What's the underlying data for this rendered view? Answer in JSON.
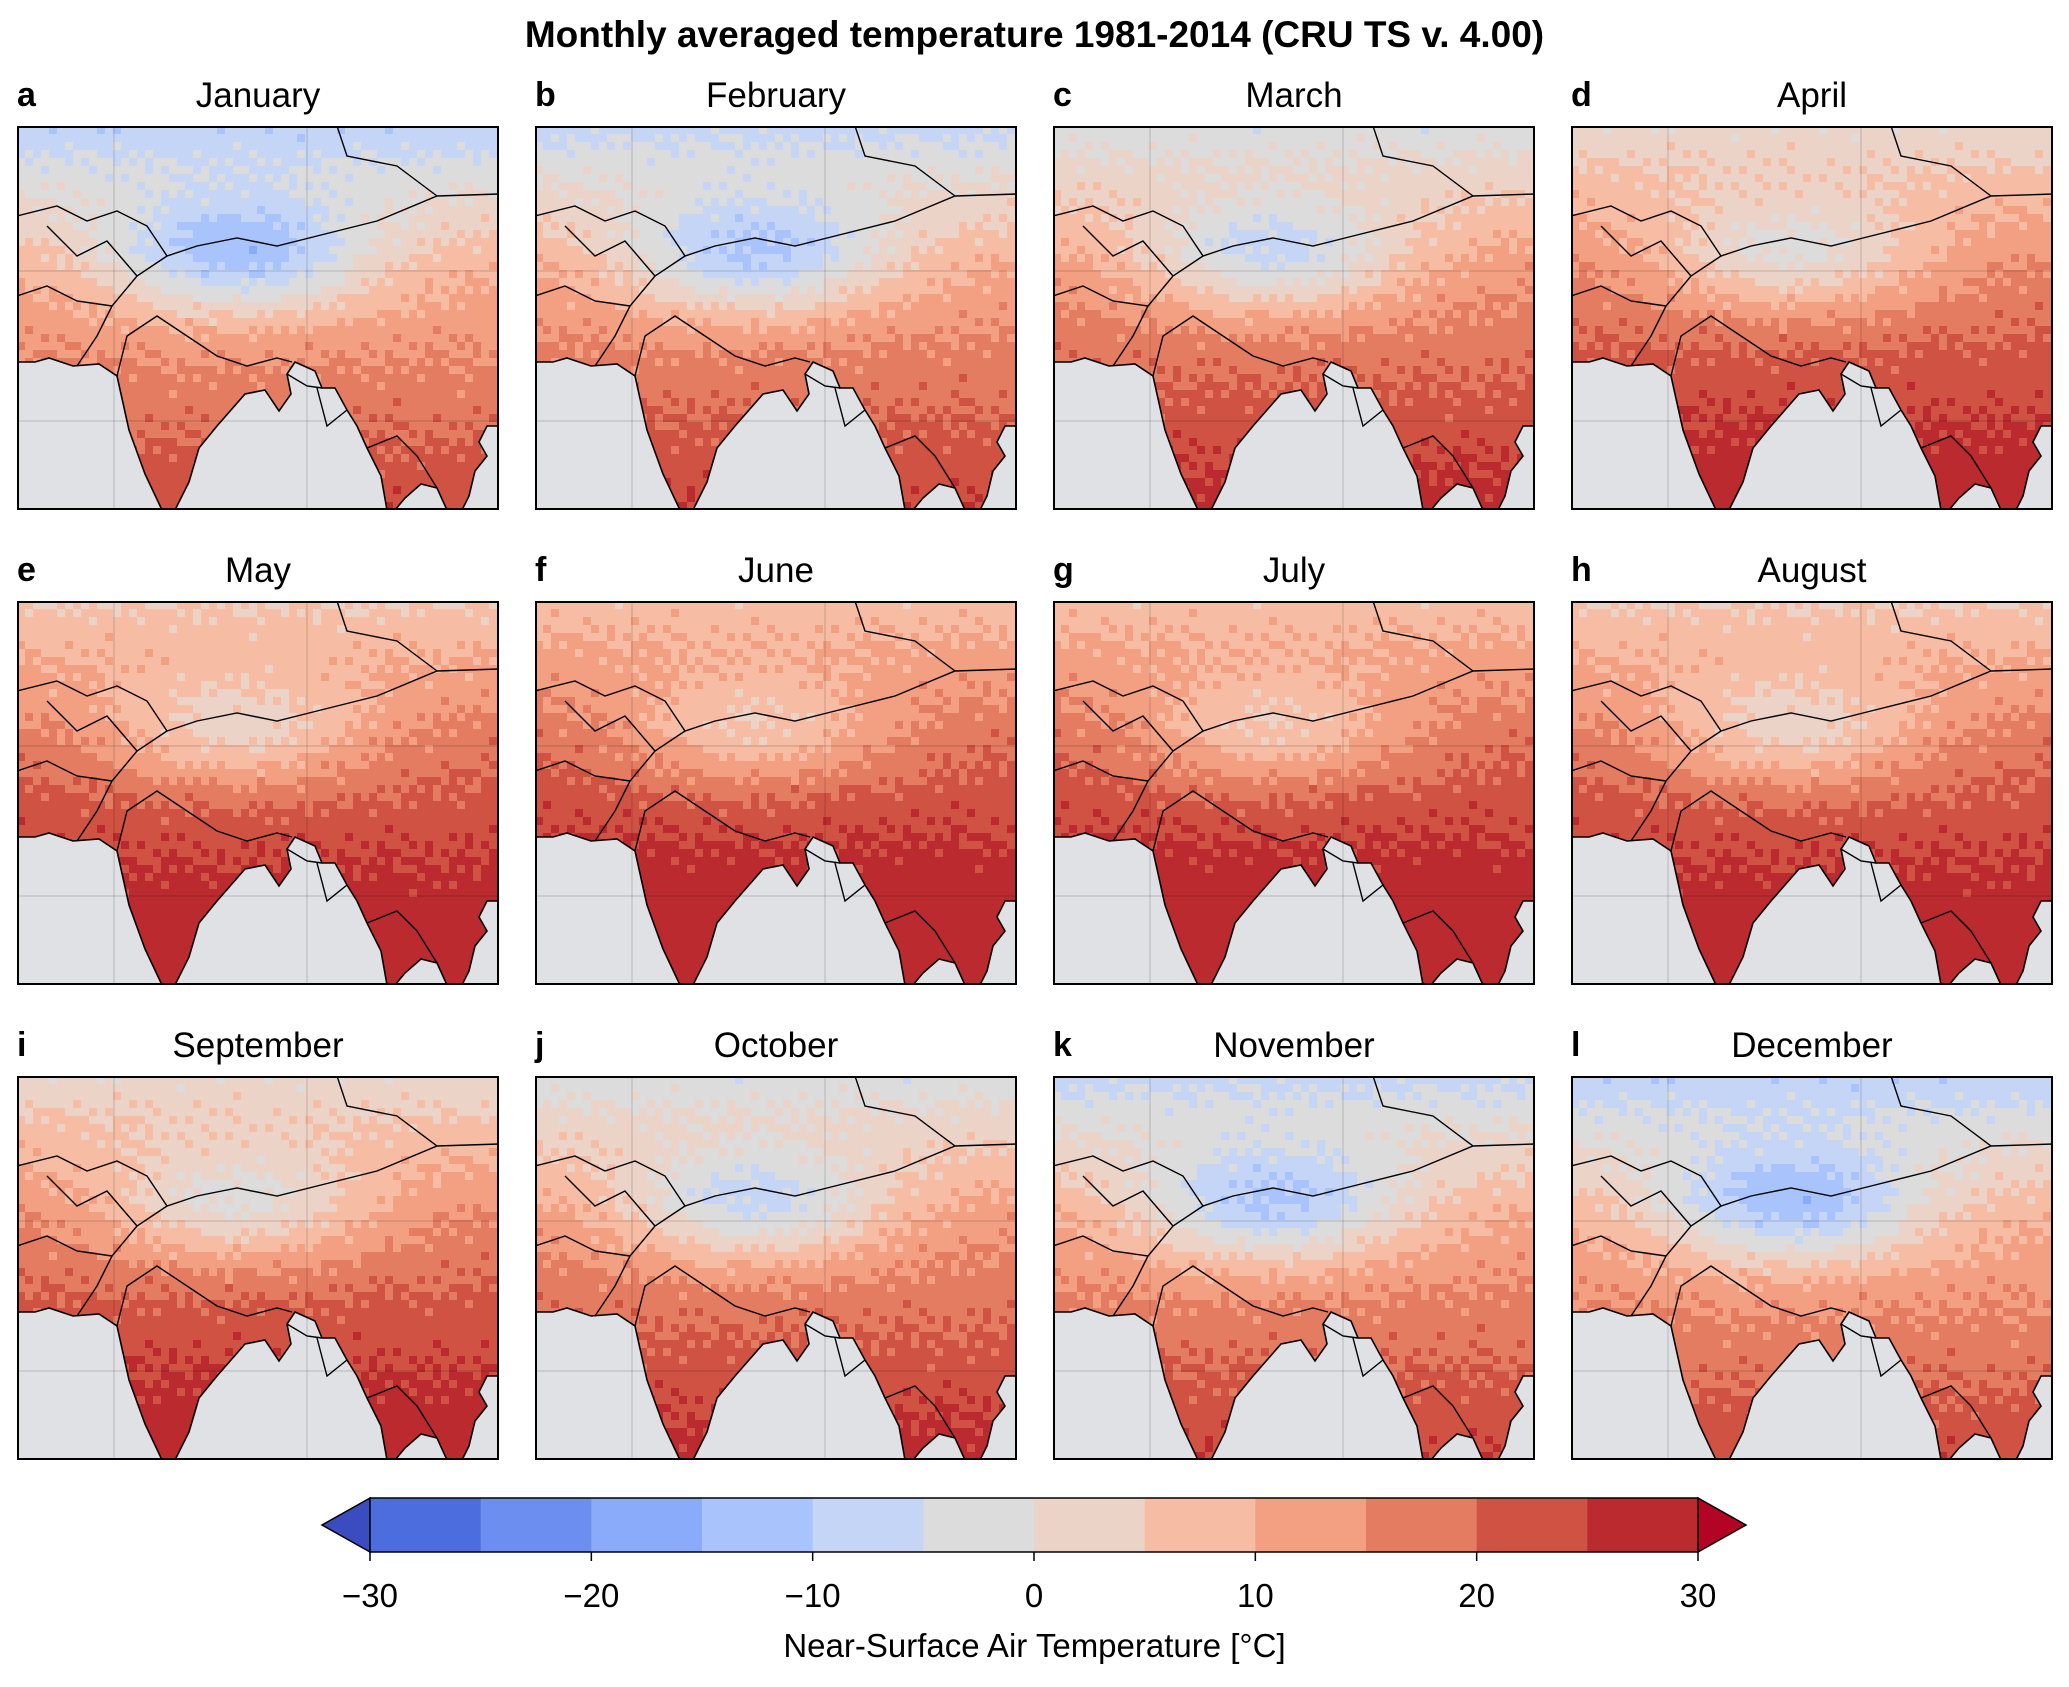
{
  "title": "Monthly averaged temperature 1981-2014 (CRU TS v. 4.00)",
  "panels": [
    {
      "letter": "a",
      "month": "January"
    },
    {
      "letter": "b",
      "month": "February"
    },
    {
      "letter": "c",
      "month": "March"
    },
    {
      "letter": "d",
      "month": "April"
    },
    {
      "letter": "e",
      "month": "May"
    },
    {
      "letter": "f",
      "month": "June"
    },
    {
      "letter": "g",
      "month": "July"
    },
    {
      "letter": "h",
      "month": "August"
    },
    {
      "letter": "i",
      "month": "September"
    },
    {
      "letter": "j",
      "month": "October"
    },
    {
      "letter": "k",
      "month": "November"
    },
    {
      "letter": "l",
      "month": "December"
    }
  ],
  "colorbar": {
    "label": "Near-Surface Air Temperature [°C]",
    "ticks": [
      "−30",
      "−20",
      "−10",
      "0",
      "10",
      "20",
      "30"
    ],
    "tick_values": [
      -30,
      -20,
      -10,
      0,
      10,
      20,
      30
    ],
    "range": [
      -30,
      30
    ],
    "interval": 5,
    "extend": "both",
    "colors": [
      "#4b6ddd",
      "#6b8ef0",
      "#8aabf9",
      "#a9c4fd",
      "#c5d5f6",
      "#dcdcdc",
      "#ecd3c8",
      "#f6bca4",
      "#f29f82",
      "#e47c62",
      "#d05243",
      "#ba2a2f"
    ],
    "under_color": "#3b4cc0",
    "over_color": "#b40426"
  },
  "map_style": {
    "ocean_color": "#dfe1e5",
    "border_color": "#000000"
  }
}
